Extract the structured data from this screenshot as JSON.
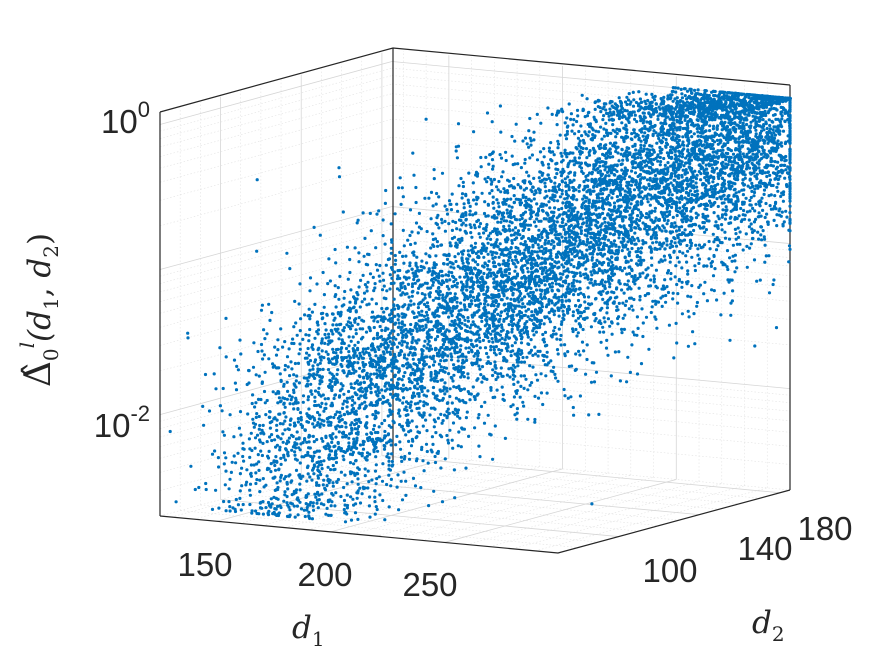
{
  "chart_data": {
    "type": "scatter",
    "projection": "3d",
    "xlabel": "d1",
    "ylabel": "d2",
    "zlabel": "Δ̂0l(d1,d2)",
    "x_ticks": [
      "150",
      "200",
      "250"
    ],
    "y_ticks": [
      "100",
      "140",
      "180"
    ],
    "z_ticks": [
      {
        "base": "10",
        "exp": "0"
      },
      {
        "base": "10",
        "exp": "-2"
      }
    ],
    "xlim": [
      125,
      300
    ],
    "ylim": [
      70,
      185
    ],
    "zlim": [
      0.002,
      1.2
    ],
    "zscale": "log",
    "grid": "on",
    "color": "#0072BD",
    "point_count_estimate": 9000,
    "cloud_trend": "Δ rises from about 0.003 at d1≈170, d2≈70 to about 1.0 at d1≈300, d2≈185",
    "sample_points": [
      {
        "x": 170,
        "y": 75,
        "z": 0.004
      },
      {
        "x": 185,
        "y": 80,
        "z": 0.01
      },
      {
        "x": 200,
        "y": 90,
        "z": 0.03
      },
      {
        "x": 220,
        "y": 110,
        "z": 0.08
      },
      {
        "x": 245,
        "y": 130,
        "z": 0.2
      },
      {
        "x": 265,
        "y": 150,
        "z": 0.4
      },
      {
        "x": 285,
        "y": 170,
        "z": 0.7
      },
      {
        "x": 298,
        "y": 183,
        "z": 1.0
      }
    ]
  }
}
